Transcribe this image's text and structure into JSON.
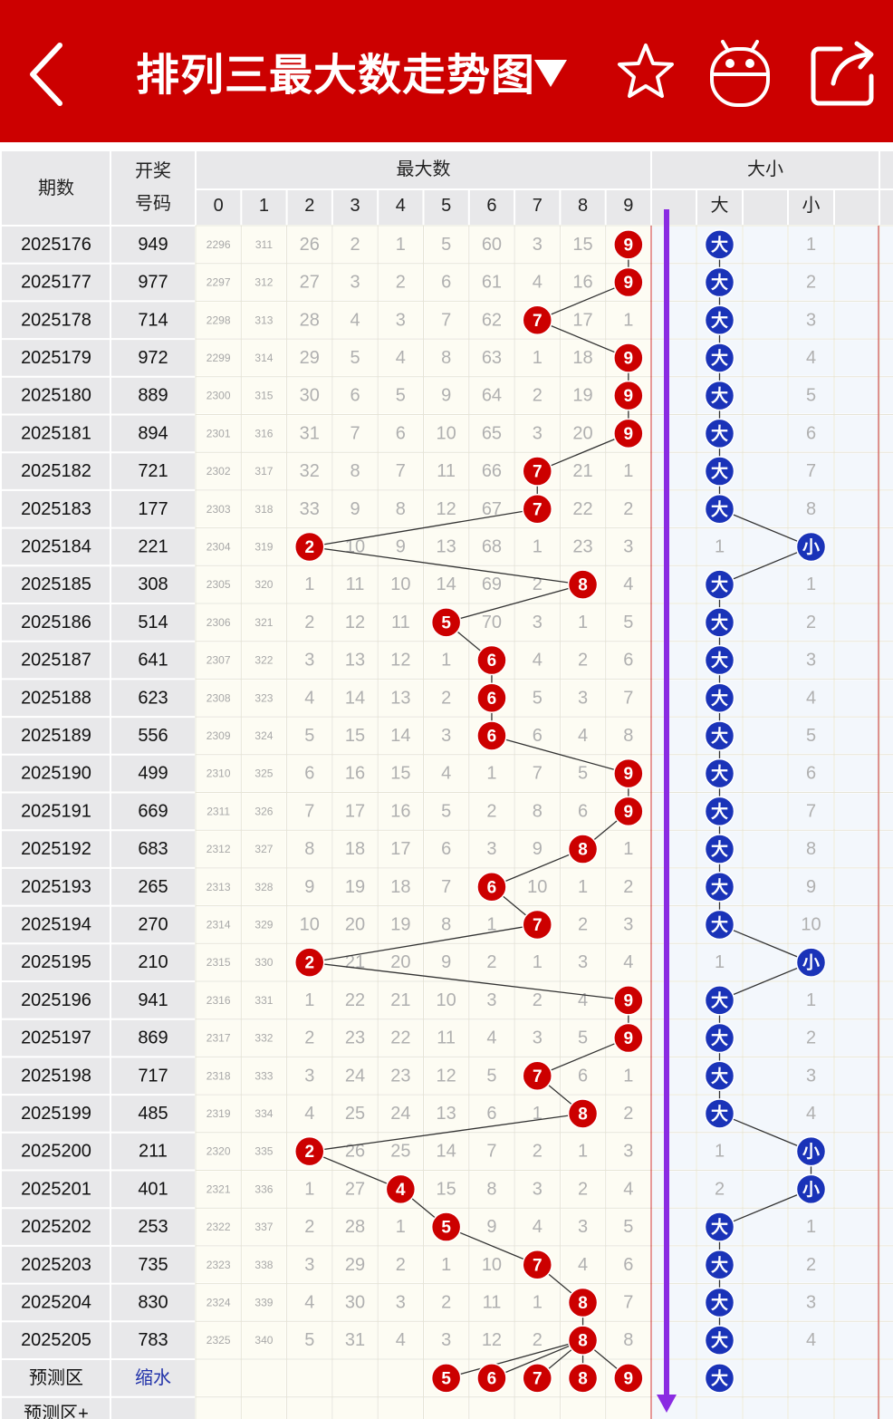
{
  "header": {
    "title": "排列三最大数走势图",
    "back_icon": "chevron-left-icon",
    "dropdown_icon": "triangle-down-icon",
    "star_icon": "star-icon",
    "robot_icon": "robot-icon",
    "share_icon": "share-icon"
  },
  "colors": {
    "header_bg": "#cc0000",
    "red_ball": "#cc0000",
    "blue_ball": "#1a33b8",
    "arrow": "#8a2be2"
  },
  "table": {
    "col_period": "期数",
    "col_draw_line1": "开奖",
    "col_draw_line2": "号码",
    "group_max": "最大数",
    "group_size": "大小",
    "digits": [
      "0",
      "1",
      "2",
      "3",
      "4",
      "5",
      "6",
      "7",
      "8",
      "9"
    ],
    "size_big": "大",
    "size_small": "小",
    "rows": [
      {
        "period": "2025176",
        "draw": "949",
        "max": 9,
        "miss": [
          "2296",
          "311",
          "26",
          "2",
          "1",
          "5",
          "60",
          "3",
          "15",
          "9"
        ],
        "size": "大",
        "small_miss": "1"
      },
      {
        "period": "2025177",
        "draw": "977",
        "max": 9,
        "miss": [
          "2297",
          "312",
          "27",
          "3",
          "2",
          "6",
          "61",
          "4",
          "16",
          "9"
        ],
        "size": "大",
        "small_miss": "2"
      },
      {
        "period": "2025178",
        "draw": "714",
        "max": 7,
        "miss": [
          "2298",
          "313",
          "28",
          "4",
          "3",
          "7",
          "62",
          "7",
          "17",
          "1"
        ],
        "size": "大",
        "small_miss": "3"
      },
      {
        "period": "2025179",
        "draw": "972",
        "max": 9,
        "miss": [
          "2299",
          "314",
          "29",
          "5",
          "4",
          "8",
          "63",
          "1",
          "18",
          "9"
        ],
        "size": "大",
        "small_miss": "4"
      },
      {
        "period": "2025180",
        "draw": "889",
        "max": 9,
        "miss": [
          "2300",
          "315",
          "30",
          "6",
          "5",
          "9",
          "64",
          "2",
          "19",
          "9"
        ],
        "size": "大",
        "small_miss": "5"
      },
      {
        "period": "2025181",
        "draw": "894",
        "max": 9,
        "miss": [
          "2301",
          "316",
          "31",
          "7",
          "6",
          "10",
          "65",
          "3",
          "20",
          "9"
        ],
        "size": "大",
        "small_miss": "6"
      },
      {
        "period": "2025182",
        "draw": "721",
        "max": 7,
        "miss": [
          "2302",
          "317",
          "32",
          "8",
          "7",
          "11",
          "66",
          "7",
          "21",
          "1"
        ],
        "size": "大",
        "small_miss": "7"
      },
      {
        "period": "2025183",
        "draw": "177",
        "max": 7,
        "miss": [
          "2303",
          "318",
          "33",
          "9",
          "8",
          "12",
          "67",
          "7",
          "22",
          "2"
        ],
        "size": "大",
        "small_miss": "8"
      },
      {
        "period": "2025184",
        "draw": "221",
        "max": 2,
        "miss": [
          "2304",
          "319",
          "2",
          "10",
          "9",
          "13",
          "68",
          "1",
          "23",
          "3"
        ],
        "size": "小",
        "big_miss": "1"
      },
      {
        "period": "2025185",
        "draw": "308",
        "max": 8,
        "miss": [
          "2305",
          "320",
          "1",
          "11",
          "10",
          "14",
          "69",
          "2",
          "8",
          "4"
        ],
        "size": "大",
        "small_miss": "1"
      },
      {
        "period": "2025186",
        "draw": "514",
        "max": 5,
        "miss": [
          "2306",
          "321",
          "2",
          "12",
          "11",
          "5",
          "70",
          "3",
          "1",
          "5"
        ],
        "size": "大",
        "small_miss": "2"
      },
      {
        "period": "2025187",
        "draw": "641",
        "max": 6,
        "miss": [
          "2307",
          "322",
          "3",
          "13",
          "12",
          "1",
          "6",
          "4",
          "2",
          "6"
        ],
        "size": "大",
        "small_miss": "3"
      },
      {
        "period": "2025188",
        "draw": "623",
        "max": 6,
        "miss": [
          "2308",
          "323",
          "4",
          "14",
          "13",
          "2",
          "6",
          "5",
          "3",
          "7"
        ],
        "size": "大",
        "small_miss": "4"
      },
      {
        "period": "2025189",
        "draw": "556",
        "max": 6,
        "miss": [
          "2309",
          "324",
          "5",
          "15",
          "14",
          "3",
          "6",
          "6",
          "4",
          "8"
        ],
        "size": "大",
        "small_miss": "5"
      },
      {
        "period": "2025190",
        "draw": "499",
        "max": 9,
        "miss": [
          "2310",
          "325",
          "6",
          "16",
          "15",
          "4",
          "1",
          "7",
          "5",
          "9"
        ],
        "size": "大",
        "small_miss": "6"
      },
      {
        "period": "2025191",
        "draw": "669",
        "max": 9,
        "miss": [
          "2311",
          "326",
          "7",
          "17",
          "16",
          "5",
          "2",
          "8",
          "6",
          "9"
        ],
        "size": "大",
        "small_miss": "7"
      },
      {
        "period": "2025192",
        "draw": "683",
        "max": 8,
        "miss": [
          "2312",
          "327",
          "8",
          "18",
          "17",
          "6",
          "3",
          "9",
          "8",
          "1"
        ],
        "size": "大",
        "small_miss": "8"
      },
      {
        "period": "2025193",
        "draw": "265",
        "max": 6,
        "miss": [
          "2313",
          "328",
          "9",
          "19",
          "18",
          "7",
          "6",
          "10",
          "1",
          "2"
        ],
        "size": "大",
        "small_miss": "9"
      },
      {
        "period": "2025194",
        "draw": "270",
        "max": 7,
        "miss": [
          "2314",
          "329",
          "10",
          "20",
          "19",
          "8",
          "1",
          "7",
          "2",
          "3"
        ],
        "size": "大",
        "small_miss": "10"
      },
      {
        "period": "2025195",
        "draw": "210",
        "max": 2,
        "miss": [
          "2315",
          "330",
          "2",
          "21",
          "20",
          "9",
          "2",
          "1",
          "3",
          "4"
        ],
        "size": "小",
        "big_miss": "1"
      },
      {
        "period": "2025196",
        "draw": "941",
        "max": 9,
        "miss": [
          "2316",
          "331",
          "1",
          "22",
          "21",
          "10",
          "3",
          "2",
          "4",
          "9"
        ],
        "size": "大",
        "small_miss": "1"
      },
      {
        "period": "2025197",
        "draw": "869",
        "max": 9,
        "miss": [
          "2317",
          "332",
          "2",
          "23",
          "22",
          "11",
          "4",
          "3",
          "5",
          "9"
        ],
        "size": "大",
        "small_miss": "2"
      },
      {
        "period": "2025198",
        "draw": "717",
        "max": 7,
        "miss": [
          "2318",
          "333",
          "3",
          "24",
          "23",
          "12",
          "5",
          "7",
          "6",
          "1"
        ],
        "size": "大",
        "small_miss": "3"
      },
      {
        "period": "2025199",
        "draw": "485",
        "max": 8,
        "miss": [
          "2319",
          "334",
          "4",
          "25",
          "24",
          "13",
          "6",
          "1",
          "8",
          "2"
        ],
        "size": "大",
        "small_miss": "4"
      },
      {
        "period": "2025200",
        "draw": "211",
        "max": 2,
        "miss": [
          "2320",
          "335",
          "2",
          "26",
          "25",
          "14",
          "7",
          "2",
          "1",
          "3"
        ],
        "size": "小",
        "big_miss": "1"
      },
      {
        "period": "2025201",
        "draw": "401",
        "max": 4,
        "miss": [
          "2321",
          "336",
          "1",
          "27",
          "4",
          "15",
          "8",
          "3",
          "2",
          "4"
        ],
        "size": "小",
        "big_miss": "2"
      },
      {
        "period": "2025202",
        "draw": "253",
        "max": 5,
        "miss": [
          "2322",
          "337",
          "2",
          "28",
          "1",
          "5",
          "9",
          "4",
          "3",
          "5"
        ],
        "size": "大",
        "small_miss": "1"
      },
      {
        "period": "2025203",
        "draw": "735",
        "max": 7,
        "miss": [
          "2323",
          "338",
          "3",
          "29",
          "2",
          "1",
          "10",
          "7",
          "4",
          "6"
        ],
        "size": "大",
        "small_miss": "2"
      },
      {
        "period": "2025204",
        "draw": "830",
        "max": 8,
        "miss": [
          "2324",
          "339",
          "4",
          "30",
          "3",
          "2",
          "11",
          "1",
          "8",
          "7"
        ],
        "size": "大",
        "small_miss": "3"
      },
      {
        "period": "2025205",
        "draw": "783",
        "max": 8,
        "miss": [
          "2325",
          "340",
          "5",
          "31",
          "4",
          "3",
          "12",
          "2",
          "8",
          "8"
        ],
        "size": "大",
        "small_miss": "4"
      }
    ],
    "prediction": {
      "label": "预测区",
      "draw": "缩水",
      "balls": [
        "5",
        "6",
        "7",
        "8",
        "9"
      ],
      "size": "大"
    },
    "prediction_plus_label": "预测区+"
  }
}
